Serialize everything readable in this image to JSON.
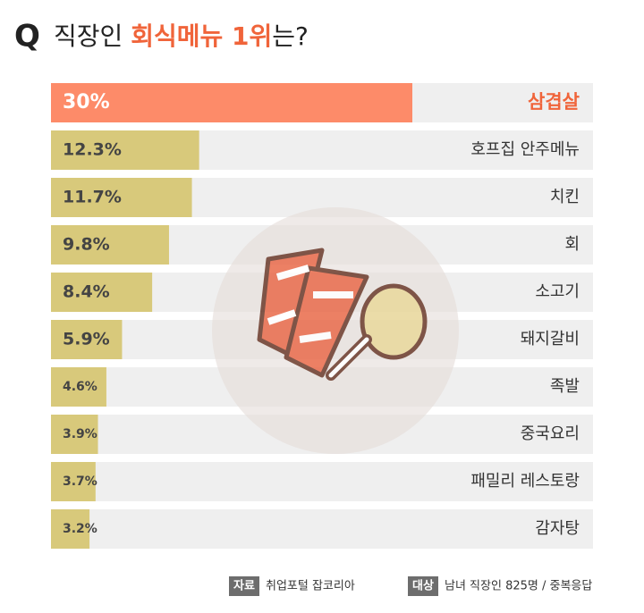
{
  "chart_data": {
    "type": "bar",
    "orientation": "horizontal",
    "title_mark": "Q",
    "title_parts": [
      "직장인 ",
      "회식메뉴 1위",
      "는?"
    ],
    "title_colors": [
      "#222222",
      "#f0643a",
      "#222222"
    ],
    "categories": [
      "삼겹살",
      "호프집 안주메뉴",
      "치킨",
      "회",
      "소고기",
      "돼지갈비",
      "족발",
      "중국요리",
      "패밀리 레스토랑",
      "감자탕"
    ],
    "values": [
      30,
      12.3,
      11.7,
      9.8,
      8.4,
      5.9,
      4.6,
      3.9,
      3.7,
      3.2
    ],
    "value_labels": [
      "30%",
      "12.3%",
      "11.7%",
      "9.8%",
      "8.4%",
      "5.9%",
      "4.6%",
      "3.9%",
      "3.7%",
      "3.2%"
    ],
    "colors": [
      "#fd8b69",
      "#d8c97b",
      "#d8c97b",
      "#d8c97b",
      "#d8c97b",
      "#d8c97b",
      "#d8c97b",
      "#d8c97b",
      "#d8c97b",
      "#d8c97b"
    ],
    "label_colors": [
      "#f0643a",
      "#333333",
      "#333333",
      "#333333",
      "#333333",
      "#333333",
      "#333333",
      "#333333",
      "#333333",
      "#333333"
    ],
    "value_label_colors": [
      "#ffffff",
      "#444444",
      "#444444",
      "#444444",
      "#444444",
      "#444444",
      "#444444",
      "#444444",
      "#444444",
      "#444444"
    ],
    "track_color": "#efefef",
    "xlim": [
      0,
      45
    ]
  },
  "footer": {
    "source_label": "자료",
    "source": "취업포털 잡코리아",
    "target_label": "대상",
    "target": "남녀 직장인 825명 / 중복응답"
  }
}
